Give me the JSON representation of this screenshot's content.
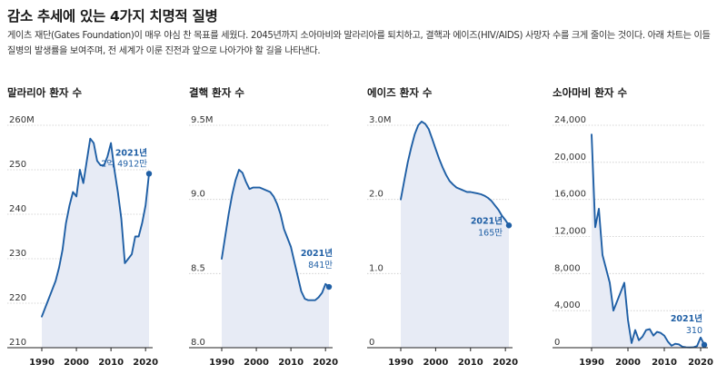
{
  "header": {
    "title": "감소 추세에 있는 4가지 치명적 질병",
    "subtitle": "게이츠 재단(Gates Foundation)이 매우 야심 찬 목표를 세웠다. 2045년까지 소아마비와 말라리아를 퇴치하고, 결핵과 에이즈(HIV/AIDS) 사망자 수를 크게 줄이는 것이다. 아래 차트는 이들 질병의 발생률을 보여주며, 전 세계가 이룬 진전과 앞으로 나아가야 할 길을 나타낸다."
  },
  "colors": {
    "line": "#1f5fa5",
    "fill": "#e7ebf5",
    "grid": "#c9c9c9",
    "axis": "#222222"
  },
  "chart_data": [
    {
      "type": "area",
      "title": "말라리아 환자 수",
      "x": [
        1990,
        1991,
        1992,
        1993,
        1994,
        1995,
        1996,
        1997,
        1998,
        1999,
        2000,
        2001,
        2002,
        2003,
        2004,
        2005,
        2006,
        2007,
        2008,
        2009,
        2010,
        2011,
        2012,
        2013,
        2014,
        2015,
        2016,
        2017,
        2018,
        2019,
        2020,
        2021
      ],
      "y": [
        217,
        219,
        221,
        223,
        225,
        228,
        232,
        238,
        242,
        245,
        244,
        250,
        247,
        252,
        257,
        256,
        252,
        251,
        251,
        253,
        256,
        250,
        245,
        239,
        229,
        230,
        231,
        235,
        235,
        238,
        242,
        249.12
      ],
      "ylim": [
        210,
        260
      ],
      "yticks": [
        210,
        220,
        230,
        240,
        250,
        260
      ],
      "ytick_labels": [
        "210",
        "220",
        "230",
        "240",
        "250",
        "260M"
      ],
      "xticks": [
        1990,
        2000,
        2010,
        2020
      ],
      "xtick_labels": [
        "1990",
        "2000",
        "2010",
        "2020"
      ],
      "annotation": {
        "year": "2021년",
        "value": "2억 4912만"
      }
    },
    {
      "type": "area",
      "title": "결핵 환자 수",
      "x": [
        1990,
        1991,
        1992,
        1993,
        1994,
        1995,
        1996,
        1997,
        1998,
        1999,
        2000,
        2001,
        2002,
        2003,
        2004,
        2005,
        2006,
        2007,
        2008,
        2009,
        2010,
        2011,
        2012,
        2013,
        2014,
        2015,
        2016,
        2017,
        2018,
        2019,
        2020,
        2021
      ],
      "y": [
        8.6,
        8.75,
        8.9,
        9.03,
        9.13,
        9.2,
        9.18,
        9.12,
        9.07,
        9.08,
        9.08,
        9.08,
        9.07,
        9.06,
        9.05,
        9.02,
        8.97,
        8.9,
        8.8,
        8.74,
        8.68,
        8.58,
        8.48,
        8.38,
        8.33,
        8.32,
        8.32,
        8.32,
        8.34,
        8.37,
        8.43,
        8.41
      ],
      "ylim": [
        8.0,
        9.5
      ],
      "yticks": [
        8.0,
        8.5,
        9.0,
        9.5
      ],
      "ytick_labels": [
        "8.0",
        "8.5",
        "9.0",
        "9.5M"
      ],
      "xticks": [
        1990,
        2000,
        2010,
        2020
      ],
      "xtick_labels": [
        "1990",
        "2000",
        "2010",
        "2020"
      ],
      "annotation": {
        "year": "2021년",
        "value": "841만"
      }
    },
    {
      "type": "area",
      "title": "에이즈 환자 수",
      "x": [
        1990,
        1991,
        1992,
        1993,
        1994,
        1995,
        1996,
        1997,
        1998,
        1999,
        2000,
        2001,
        2002,
        2003,
        2004,
        2005,
        2006,
        2007,
        2008,
        2009,
        2010,
        2011,
        2012,
        2013,
        2014,
        2015,
        2016,
        2017,
        2018,
        2019,
        2020,
        2021
      ],
      "y": [
        2.0,
        2.25,
        2.5,
        2.7,
        2.88,
        3.0,
        3.05,
        3.02,
        2.95,
        2.82,
        2.68,
        2.55,
        2.43,
        2.33,
        2.25,
        2.2,
        2.16,
        2.14,
        2.12,
        2.1,
        2.1,
        2.09,
        2.08,
        2.07,
        2.05,
        2.02,
        1.98,
        1.92,
        1.86,
        1.78,
        1.72,
        1.65
      ],
      "ylim": [
        0,
        3.0
      ],
      "yticks": [
        0,
        1.0,
        2.0,
        3.0
      ],
      "ytick_labels": [
        "0",
        "1.0",
        "2.0",
        "3.0M"
      ],
      "xticks": [
        1990,
        2000,
        2010,
        2020
      ],
      "xtick_labels": [
        "1990",
        "2000",
        "2010",
        "2020"
      ],
      "annotation": {
        "year": "2021년",
        "value": "165만"
      }
    },
    {
      "type": "area",
      "title": "소아마비 환자 수",
      "x": [
        1990,
        1991,
        1992,
        1993,
        1994,
        1995,
        1996,
        1997,
        1998,
        1999,
        2000,
        2001,
        2002,
        2003,
        2004,
        2005,
        2006,
        2007,
        2008,
        2009,
        2010,
        2011,
        2012,
        2013,
        2014,
        2015,
        2016,
        2017,
        2018,
        2019,
        2020,
        2021
      ],
      "y": [
        23000,
        13000,
        15000,
        10000,
        8500,
        7000,
        4000,
        5000,
        6000,
        7000,
        3000,
        500,
        1900,
        800,
        1200,
        1900,
        2000,
        1300,
        1700,
        1600,
        1300,
        650,
        220,
        420,
        360,
        100,
        40,
        30,
        40,
        180,
        1100,
        310
      ],
      "ylim": [
        0,
        24000
      ],
      "yticks": [
        0,
        4000,
        8000,
        12000,
        16000,
        20000,
        24000
      ],
      "ytick_labels": [
        "0",
        "4,000",
        "8,000",
        "12,000",
        "16,000",
        "20,000",
        "24,000"
      ],
      "xticks": [
        1990,
        2000,
        2010,
        2020
      ],
      "xtick_labels": [
        "1990",
        "2000",
        "2010",
        "2020"
      ],
      "annotation": {
        "year": "2021년",
        "value": "310"
      }
    }
  ]
}
